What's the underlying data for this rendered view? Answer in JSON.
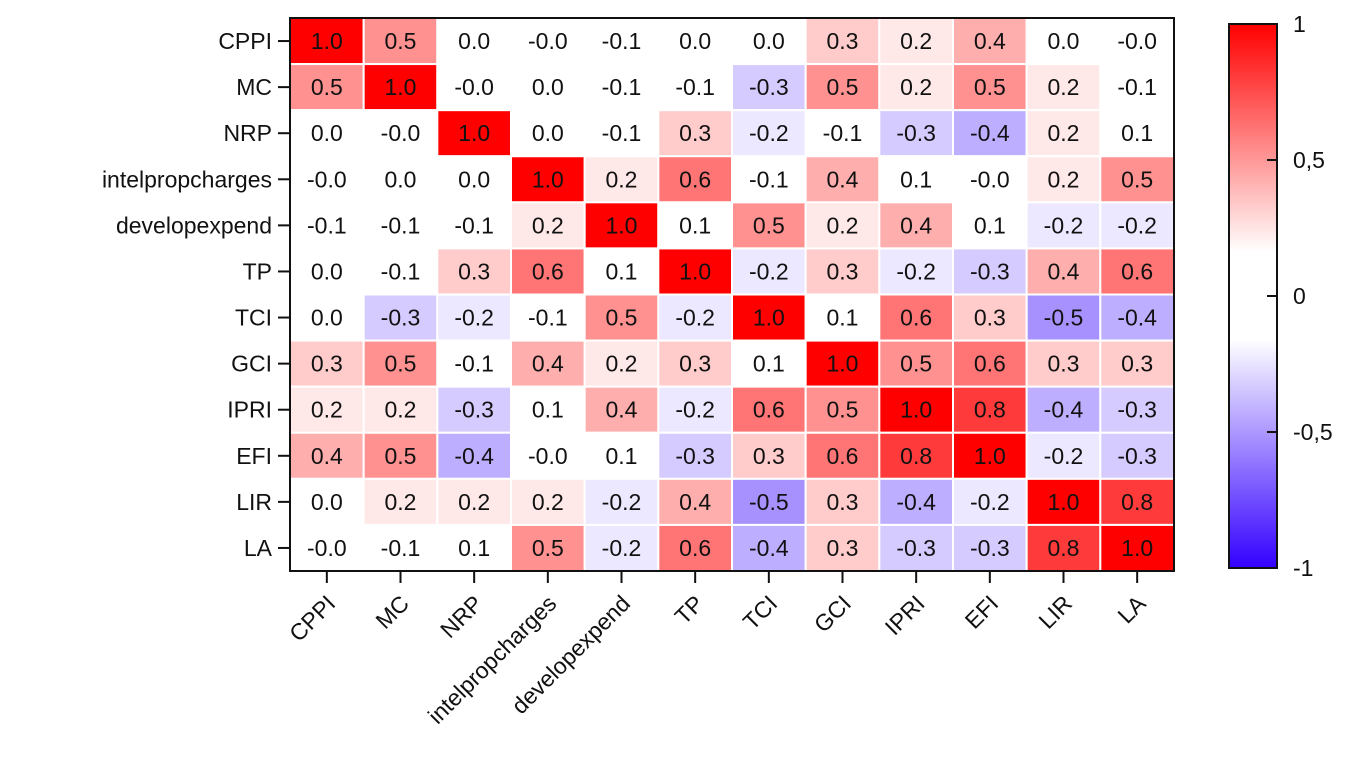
{
  "chart_data": {
    "type": "heatmap",
    "title": "",
    "xlabel": "",
    "ylabel": "",
    "rows": [
      "CPPI",
      "MC",
      "NRP",
      "intelpropcharges",
      "developexpend",
      "TP",
      "TCI",
      "GCI",
      "IPRI",
      "EFI",
      "LIR",
      "LA"
    ],
    "columns": [
      "CPPI",
      "MC",
      "NRP",
      "intelpropcharges",
      "developexpend",
      "TP",
      "TCI",
      "GCI",
      "IPRI",
      "EFI",
      "LIR",
      "LA"
    ],
    "values": [
      [
        1.0,
        0.5,
        0.0,
        -0.0,
        -0.1,
        0.0,
        0.0,
        0.3,
        0.2,
        0.4,
        0.0,
        -0.0
      ],
      [
        0.5,
        1.0,
        -0.0,
        0.0,
        -0.1,
        -0.1,
        -0.3,
        0.5,
        0.2,
        0.5,
        0.2,
        -0.1
      ],
      [
        0.0,
        -0.0,
        1.0,
        0.0,
        -0.1,
        0.3,
        -0.2,
        -0.1,
        -0.3,
        -0.4,
        0.2,
        0.1
      ],
      [
        -0.0,
        0.0,
        0.0,
        1.0,
        0.2,
        0.6,
        -0.1,
        0.4,
        0.1,
        -0.0,
        0.2,
        0.5
      ],
      [
        -0.1,
        -0.1,
        -0.1,
        0.2,
        1.0,
        0.1,
        0.5,
        0.2,
        0.4,
        0.1,
        -0.2,
        -0.2
      ],
      [
        0.0,
        -0.1,
        0.3,
        0.6,
        0.1,
        1.0,
        -0.2,
        0.3,
        -0.2,
        -0.3,
        0.4,
        0.6
      ],
      [
        0.0,
        -0.3,
        -0.2,
        -0.1,
        0.5,
        -0.2,
        1.0,
        0.1,
        0.6,
        0.3,
        -0.5,
        -0.4
      ],
      [
        0.3,
        0.5,
        -0.1,
        0.4,
        0.2,
        0.3,
        0.1,
        1.0,
        0.5,
        0.6,
        0.3,
        0.3
      ],
      [
        0.2,
        0.2,
        -0.3,
        0.1,
        0.4,
        -0.2,
        0.6,
        0.5,
        1.0,
        0.8,
        -0.4,
        -0.3
      ],
      [
        0.4,
        0.5,
        -0.4,
        -0.0,
        0.1,
        -0.3,
        0.3,
        0.6,
        0.8,
        1.0,
        -0.2,
        -0.3
      ],
      [
        0.0,
        0.2,
        0.2,
        0.2,
        -0.2,
        0.4,
        -0.5,
        0.3,
        -0.4,
        -0.2,
        1.0,
        0.8
      ],
      [
        -0.0,
        -0.1,
        0.1,
        0.5,
        -0.2,
        0.6,
        -0.4,
        0.3,
        -0.3,
        -0.3,
        0.8,
        1.0
      ]
    ],
    "value_labels": [
      [
        "1.0",
        "0.5",
        "0.0",
        "-0.0",
        "-0.1",
        "0.0",
        "0.0",
        "0.3",
        "0.2",
        "0.4",
        "0.0",
        "-0.0"
      ],
      [
        "0.5",
        "1.0",
        "-0.0",
        "0.0",
        "-0.1",
        "-0.1",
        "-0.3",
        "0.5",
        "0.2",
        "0.5",
        "0.2",
        "-0.1"
      ],
      [
        "0.0",
        "-0.0",
        "1.0",
        "0.0",
        "-0.1",
        "0.3",
        "-0.2",
        "-0.1",
        "-0.3",
        "-0.4",
        "0.2",
        "0.1"
      ],
      [
        "-0.0",
        "0.0",
        "0.0",
        "1.0",
        "0.2",
        "0.6",
        "-0.1",
        "0.4",
        "0.1",
        "-0.0",
        "0.2",
        "0.5"
      ],
      [
        "-0.1",
        "-0.1",
        "-0.1",
        "0.2",
        "1.0",
        "0.1",
        "0.5",
        "0.2",
        "0.4",
        "0.1",
        "-0.2",
        "-0.2"
      ],
      [
        "0.0",
        "-0.1",
        "0.3",
        "0.6",
        "0.1",
        "1.0",
        "-0.2",
        "0.3",
        "-0.2",
        "-0.3",
        "0.4",
        "0.6"
      ],
      [
        "0.0",
        "-0.3",
        "-0.2",
        "-0.1",
        "0.5",
        "-0.2",
        "1.0",
        "0.1",
        "0.6",
        "0.3",
        "-0.5",
        "-0.4"
      ],
      [
        "0.3",
        "0.5",
        "-0.1",
        "0.4",
        "0.2",
        "0.3",
        "0.1",
        "1.0",
        "0.5",
        "0.6",
        "0.3",
        "0.3"
      ],
      [
        "0.2",
        "0.2",
        "-0.3",
        "0.1",
        "0.4",
        "-0.2",
        "0.6",
        "0.5",
        "1.0",
        "0.8",
        "-0.4",
        "-0.3"
      ],
      [
        "0.4",
        "0.5",
        "-0.4",
        "-0.0",
        "0.1",
        "-0.3",
        "0.3",
        "0.6",
        "0.8",
        "1.0",
        "-0.2",
        "-0.3"
      ],
      [
        "0.0",
        "0.2",
        "0.2",
        "0.2",
        "-0.2",
        "0.4",
        "-0.5",
        "0.3",
        "-0.4",
        "-0.2",
        "1.0",
        "0.8"
      ],
      [
        "-0.0",
        "-0.1",
        "0.1",
        "0.5",
        "-0.2",
        "0.6",
        "-0.4",
        "0.3",
        "-0.3",
        "-0.3",
        "0.8",
        "1.0"
      ]
    ],
    "colorbar": {
      "range": [
        -1,
        1
      ],
      "ticks": [
        1,
        0.5,
        0,
        -0.5,
        -1
      ],
      "tick_labels": [
        "1",
        "0,5",
        "0",
        "-0,5",
        "-1"
      ],
      "colors": {
        "low": "#3300ff",
        "mid": "#ffffff",
        "high": "#ff0000"
      }
    },
    "grid": true,
    "legend": "right"
  }
}
